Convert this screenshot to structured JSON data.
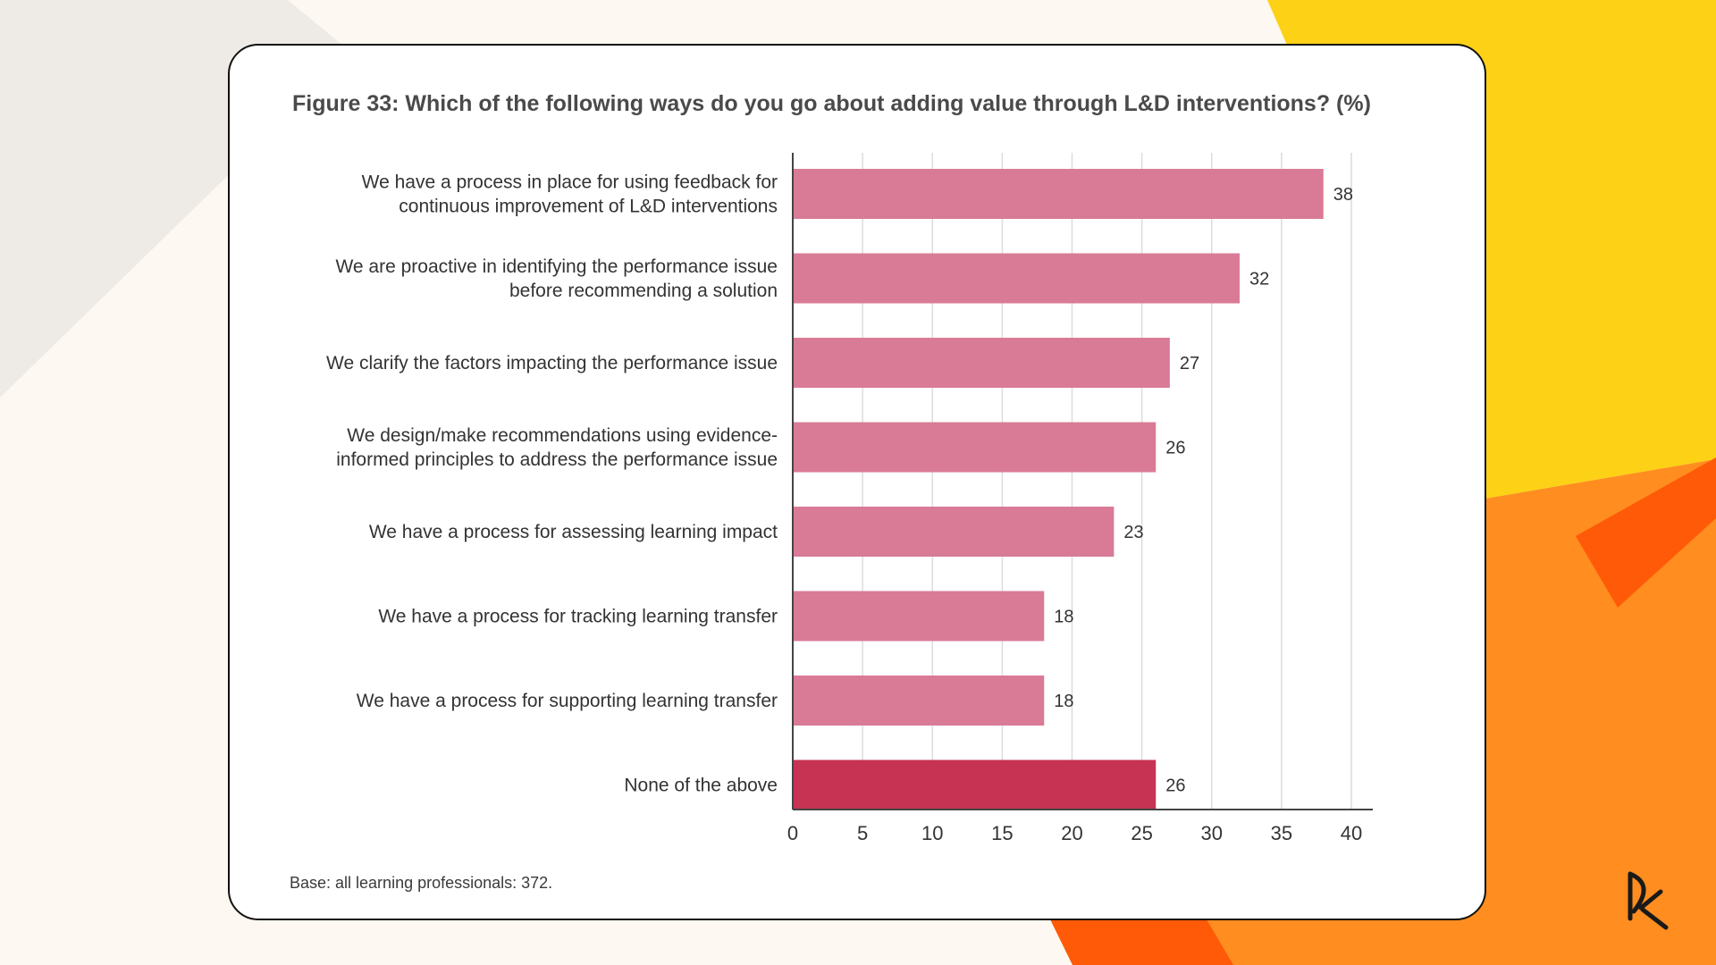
{
  "slide": {
    "colors": {
      "background": "#fdf8f1",
      "grey_shape": "#eeebe6",
      "yellow": "#fdd116",
      "orange": "#ff8d1f",
      "red_orange": "#ff5a08",
      "card": "#ffffff",
      "card_border": "#111111"
    },
    "logo_icon": "brand-logo-icon"
  },
  "chart_data": {
    "type": "bar",
    "orientation": "horizontal",
    "title": "Figure 33: Which of the following ways do you go about adding value through L&D interventions? (%)",
    "categories": [
      [
        "We have a process in place for using feedback for",
        "continuous improvement of L&D interventions"
      ],
      [
        "We are proactive in identifying the performance issue",
        "before recommending a solution"
      ],
      [
        "We clarify the factors impacting the performance issue"
      ],
      [
        "We design/make recommendations using evidence-",
        "informed principles to address the performance issue"
      ],
      [
        "We have a process for assessing learning impact"
      ],
      [
        "We have a process for tracking learning transfer"
      ],
      [
        "We have a process for supporting learning transfer"
      ],
      [
        "None of the above"
      ]
    ],
    "values": [
      38,
      32,
      27,
      26,
      23,
      18,
      18,
      26
    ],
    "value_labels": [
      "38",
      "32",
      "27",
      "26",
      "23",
      "18",
      "18",
      "26"
    ],
    "xlim": [
      0,
      40
    ],
    "xticks": [
      0,
      5,
      10,
      15,
      20,
      25,
      30,
      35,
      40
    ],
    "grid": true,
    "legend": "none",
    "bar_colors": [
      "#d97b96",
      "#d97b96",
      "#d97b96",
      "#d97b96",
      "#d97b96",
      "#d97b96",
      "#d97b96",
      "#c63353"
    ],
    "footnote": "Base: all learning professionals: 372."
  }
}
